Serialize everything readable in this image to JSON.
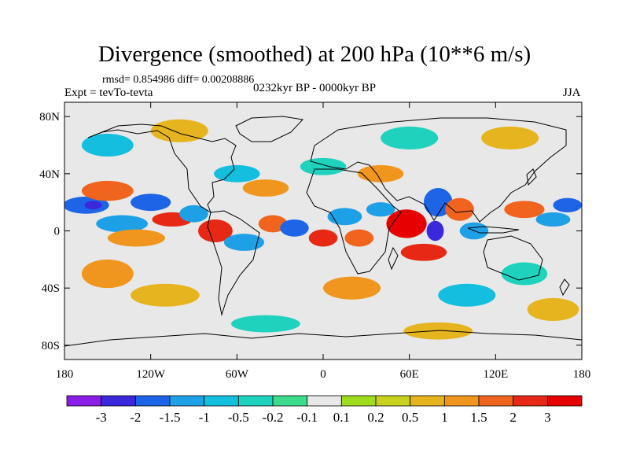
{
  "title": "Divergence (smoothed) at 200 hPa (10**6 m/s)",
  "stats": "rmsd= 0.854986 diff= 0.00208886",
  "experiment": "Expt = tevTo-tevta",
  "period": "0232kyr BP - 0000kyr BP",
  "season": "JJA",
  "map": {
    "lon_range": [
      -180,
      180
    ],
    "lat_range": [
      -90,
      90
    ],
    "y_ticks": [
      {
        "lat": 80,
        "label": "80N"
      },
      {
        "lat": 40,
        "label": "40N"
      },
      {
        "lat": 0,
        "label": "0"
      },
      {
        "lat": -40,
        "label": "40S"
      },
      {
        "lat": -80,
        "label": "80S"
      }
    ],
    "x_ticks": [
      {
        "lon": -180,
        "label": "180"
      },
      {
        "lon": -120,
        "label": "120W"
      },
      {
        "lon": -60,
        "label": "60W"
      },
      {
        "lon": 0,
        "label": "0"
      },
      {
        "lon": 60,
        "label": "60E"
      },
      {
        "lon": 120,
        "label": "120E"
      },
      {
        "lon": 180,
        "label": "180"
      }
    ],
    "background_color": "#e8e8e8",
    "coastline_color": "#000000"
  },
  "colorbar": {
    "labels": [
      "-3",
      "-2",
      "-1.5",
      "-1",
      "-0.5",
      "-0.2",
      "-0.1",
      "0.1",
      "0.2",
      "0.5",
      "1",
      "1.5",
      "2",
      "3"
    ],
    "colors": [
      "#8a1ee6",
      "#3c28dc",
      "#1e64e6",
      "#1ea0e6",
      "#14bede",
      "#1ed2be",
      "#3cdc8c",
      "#e8e8e8",
      "#a0dc1e",
      "#c8d21e",
      "#e6b41e",
      "#f0961e",
      "#f0641e",
      "#e62814",
      "#e60000"
    ]
  },
  "anomalies": [
    {
      "lon": -165,
      "lat": 18,
      "rx": 16,
      "ry": 6,
      "v": -2
    },
    {
      "lon": -160,
      "lat": 18,
      "rx": 6,
      "ry": 3,
      "v": -3
    },
    {
      "lon": -150,
      "lat": 28,
      "rx": 18,
      "ry": 7,
      "v": 1.5
    },
    {
      "lon": -140,
      "lat": 5,
      "rx": 18,
      "ry": 6,
      "v": -1.5
    },
    {
      "lon": -120,
      "lat": 20,
      "rx": 14,
      "ry": 6,
      "v": -2
    },
    {
      "lon": -130,
      "lat": -5,
      "rx": 20,
      "ry": 6,
      "v": 1
    },
    {
      "lon": -105,
      "lat": 8,
      "rx": 14,
      "ry": 5,
      "v": 2
    },
    {
      "lon": -90,
      "lat": 12,
      "rx": 10,
      "ry": 6,
      "v": -1.5
    },
    {
      "lon": -75,
      "lat": 0,
      "rx": 12,
      "ry": 8,
      "v": 2
    },
    {
      "lon": -55,
      "lat": -8,
      "rx": 14,
      "ry": 6,
      "v": -1.5
    },
    {
      "lon": -35,
      "lat": 5,
      "rx": 10,
      "ry": 6,
      "v": 1.5
    },
    {
      "lon": -20,
      "lat": 2,
      "rx": 10,
      "ry": 6,
      "v": -2
    },
    {
      "lon": 0,
      "lat": -5,
      "rx": 10,
      "ry": 6,
      "v": 2
    },
    {
      "lon": 15,
      "lat": 10,
      "rx": 12,
      "ry": 6,
      "v": -1.5
    },
    {
      "lon": 25,
      "lat": -5,
      "rx": 10,
      "ry": 6,
      "v": 1.5
    },
    {
      "lon": 40,
      "lat": 15,
      "rx": 10,
      "ry": 5,
      "v": -1.5
    },
    {
      "lon": 58,
      "lat": 5,
      "rx": 14,
      "ry": 10,
      "v": 3
    },
    {
      "lon": 70,
      "lat": -15,
      "rx": 16,
      "ry": 6,
      "v": 2
    },
    {
      "lon": 78,
      "lat": 0,
      "rx": 6,
      "ry": 7,
      "v": -3
    },
    {
      "lon": 80,
      "lat": 20,
      "rx": 10,
      "ry": 10,
      "v": -2
    },
    {
      "lon": 95,
      "lat": 15,
      "rx": 10,
      "ry": 8,
      "v": 1.5
    },
    {
      "lon": 105,
      "lat": 0,
      "rx": 10,
      "ry": 6,
      "v": -1.5
    },
    {
      "lon": 140,
      "lat": 15,
      "rx": 14,
      "ry": 6,
      "v": 1.5
    },
    {
      "lon": 160,
      "lat": 8,
      "rx": 12,
      "ry": 5,
      "v": -1.5
    },
    {
      "lon": 170,
      "lat": 18,
      "rx": 10,
      "ry": 5,
      "v": -2
    },
    {
      "lon": -150,
      "lat": -30,
      "rx": 18,
      "ry": 10,
      "v": 1
    },
    {
      "lon": -110,
      "lat": -45,
      "rx": 24,
      "ry": 8,
      "v": 0.5
    },
    {
      "lon": -60,
      "lat": 40,
      "rx": 16,
      "ry": 6,
      "v": -1
    },
    {
      "lon": -40,
      "lat": 30,
      "rx": 16,
      "ry": 6,
      "v": 1
    },
    {
      "lon": 0,
      "lat": 45,
      "rx": 16,
      "ry": 6,
      "v": -0.5
    },
    {
      "lon": 40,
      "lat": 40,
      "rx": 16,
      "ry": 6,
      "v": 1
    },
    {
      "lon": 20,
      "lat": -40,
      "rx": 20,
      "ry": 8,
      "v": 1
    },
    {
      "lon": 100,
      "lat": -45,
      "rx": 20,
      "ry": 8,
      "v": -1
    },
    {
      "lon": 140,
      "lat": -30,
      "rx": 16,
      "ry": 8,
      "v": -0.5
    },
    {
      "lon": 160,
      "lat": -55,
      "rx": 18,
      "ry": 8,
      "v": 0.5
    },
    {
      "lon": -150,
      "lat": 60,
      "rx": 18,
      "ry": 8,
      "v": -1
    },
    {
      "lon": -100,
      "lat": 70,
      "rx": 20,
      "ry": 8,
      "v": 0.5
    },
    {
      "lon": 60,
      "lat": 65,
      "rx": 20,
      "ry": 8,
      "v": -0.5
    },
    {
      "lon": 130,
      "lat": 65,
      "rx": 20,
      "ry": 8,
      "v": 0.5
    },
    {
      "lon": -40,
      "lat": -65,
      "rx": 24,
      "ry": 6,
      "v": -0.5
    },
    {
      "lon": 80,
      "lat": -70,
      "rx": 24,
      "ry": 6,
      "v": 0.5
    }
  ]
}
